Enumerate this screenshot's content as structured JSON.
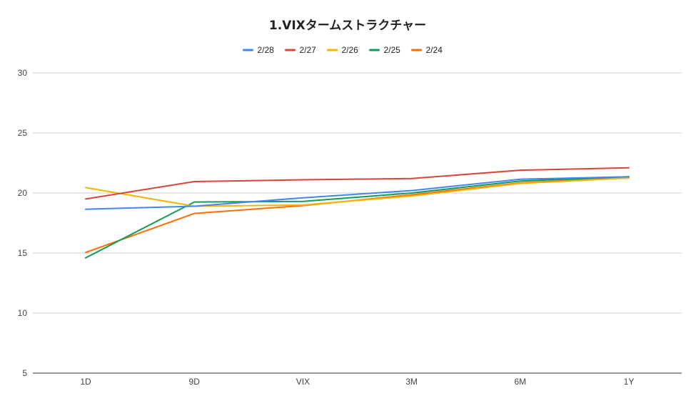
{
  "chart_data": {
    "type": "line",
    "title": "1.VIXタームストラクチャー",
    "xlabel": "",
    "ylabel": "",
    "categories": [
      "1D",
      "9D",
      "VIX",
      "3M",
      "6M",
      "1Y"
    ],
    "ylim": [
      5,
      30
    ],
    "yticks": [
      5,
      10,
      15,
      20,
      25,
      30
    ],
    "grid": true,
    "legend_position": "top",
    "series": [
      {
        "name": "2/28",
        "color": "#4285f4",
        "values": [
          18.65,
          18.9,
          19.6,
          20.2,
          21.15,
          21.35
        ]
      },
      {
        "name": "2/27",
        "color": "#db4437",
        "values": [
          19.5,
          20.95,
          21.1,
          21.2,
          21.9,
          22.1
        ]
      },
      {
        "name": "2/26",
        "color": "#f4b400",
        "values": [
          20.45,
          18.9,
          19.0,
          19.75,
          20.8,
          21.25
        ]
      },
      {
        "name": "2/25",
        "color": "#0f9d58",
        "values": [
          14.6,
          19.25,
          19.3,
          20.0,
          21.0,
          21.35
        ]
      },
      {
        "name": "2/24",
        "color": "#ff6d01",
        "values": [
          15.05,
          18.3,
          18.95,
          19.85,
          20.85,
          21.3
        ]
      }
    ]
  }
}
